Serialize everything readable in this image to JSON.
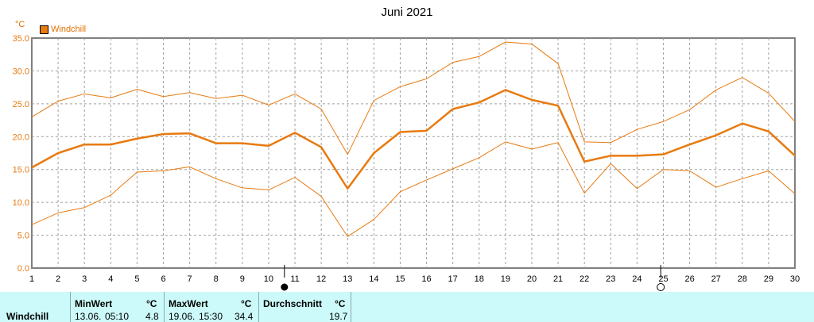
{
  "title": "Juni 2021",
  "unit": "°C",
  "legend": "Windchill",
  "colors": {
    "line": "#e87a10",
    "grid": "#a0a0a0",
    "axis": "#808080",
    "stats_bg": "#ccfafa",
    "text": "#000000"
  },
  "chart_data": {
    "type": "line",
    "x": [
      1,
      2,
      3,
      4,
      5,
      6,
      7,
      8,
      9,
      10,
      11,
      12,
      13,
      14,
      15,
      16,
      17,
      18,
      19,
      20,
      21,
      22,
      23,
      24,
      25,
      26,
      27,
      28,
      29,
      30
    ],
    "ylim": [
      0,
      35
    ],
    "yticks": [
      "0.0",
      "5.0",
      "10.0",
      "15.0",
      "20.0",
      "25.0",
      "30.0",
      "35.0"
    ],
    "xticks": [
      "1",
      "2",
      "3",
      "4",
      "5",
      "6",
      "7",
      "8",
      "9",
      "10",
      "11",
      "12",
      "13",
      "14",
      "15",
      "16",
      "17",
      "18",
      "19",
      "20",
      "21",
      "22",
      "23",
      "24",
      "25",
      "26",
      "27",
      "28",
      "29",
      "30"
    ],
    "grid": true,
    "legend_position": "top-left",
    "series": [
      {
        "name": "Windchill",
        "values": [
          15.3,
          17.5,
          18.8,
          18.8,
          19.7,
          20.4,
          20.5,
          19.0,
          19.0,
          18.6,
          20.6,
          18.4,
          12.1,
          17.5,
          20.7,
          20.9,
          24.2,
          25.2,
          27.1,
          25.6,
          24.7,
          16.2,
          17.1,
          17.1,
          17.3,
          18.8,
          20.2,
          22.0,
          20.8,
          17.1
        ]
      },
      {
        "name": "",
        "values": [
          23.0,
          25.4,
          26.5,
          25.9,
          27.2,
          26.1,
          26.7,
          25.8,
          26.3,
          24.8,
          26.5,
          24.2,
          17.3,
          25.5,
          27.6,
          28.8,
          31.3,
          32.2,
          34.4,
          34.1,
          31.1,
          19.2,
          19.1,
          21.1,
          22.3,
          24.1,
          27.1,
          29.0,
          26.6,
          22.3
        ]
      },
      {
        "name": "",
        "values": [
          6.6,
          8.4,
          9.2,
          11.1,
          14.6,
          14.8,
          15.4,
          13.6,
          12.2,
          11.9,
          13.8,
          10.9,
          4.8,
          7.4,
          11.6,
          13.4,
          15.1,
          16.8,
          19.2,
          18.1,
          19.1,
          11.4,
          15.9,
          12.1,
          15.0,
          14.8,
          12.3,
          13.6,
          14.8,
          11.3
        ]
      }
    ],
    "markers": [
      {
        "x": 10.6,
        "symbol": "full-moon"
      },
      {
        "x": 24.9,
        "symbol": "new-moon"
      }
    ]
  },
  "stats": {
    "label": "Windchill",
    "min": {
      "header": "MinWert",
      "unit": "°C",
      "date": "13.06.",
      "time": "05:10",
      "value": "4.8"
    },
    "max": {
      "header": "MaxWert",
      "unit": "°C",
      "date": "19.06.",
      "time": "15:30",
      "value": "34.4"
    },
    "avg": {
      "header": "Durchschnitt",
      "unit": "°C",
      "value": "19.7"
    }
  }
}
